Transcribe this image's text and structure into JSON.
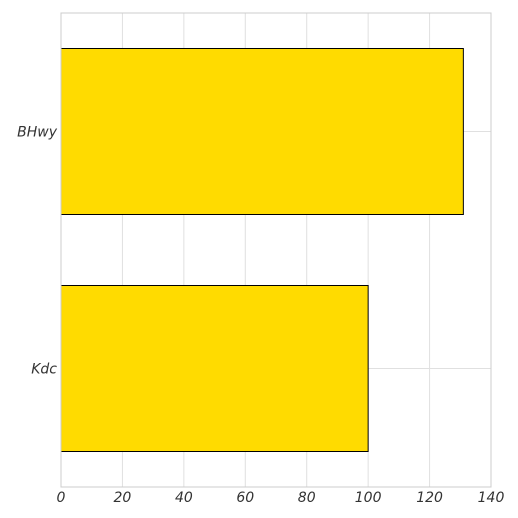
{
  "chart_data": {
    "type": "bar",
    "orientation": "horizontal",
    "categories": [
      "BHwy",
      "Kdc"
    ],
    "values": [
      131,
      100
    ],
    "xlim": [
      0,
      140
    ],
    "xticks": [
      "0",
      "20",
      "40",
      "60",
      "80",
      "100",
      "120",
      "140"
    ],
    "grid": true,
    "title": "",
    "xlabel": "",
    "ylabel": "",
    "bar_color": "#FFDB00",
    "bar_edge_color": "#000000",
    "grid_color": "#e0e0e0"
  }
}
